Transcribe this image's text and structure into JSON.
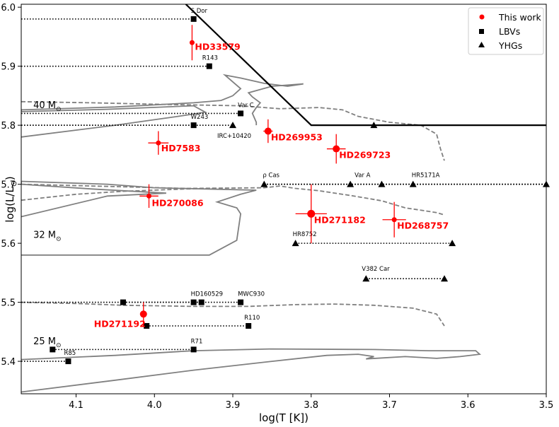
{
  "chart_data": {
    "type": "scatter",
    "xlabel": "log(T [K])",
    "ylabel_main": "log(L/L",
    "ylabel_suffix": ")",
    "xlim": [
      4.17,
      3.5
    ],
    "ylim": [
      5.345,
      6.005
    ],
    "x_ticks": [
      4.1,
      4.0,
      3.9,
      3.8,
      3.7,
      3.6,
      3.5
    ],
    "x_tick_labels": [
      "4.1",
      "4.0",
      "3.9",
      "3.8",
      "3.7",
      "3.6",
      "3.5"
    ],
    "y_ticks": [
      5.4,
      5.5,
      5.6,
      5.7,
      5.8,
      5.9,
      6.0
    ],
    "y_tick_labels": [
      "5.4",
      "5.5",
      "5.6",
      "5.7",
      "5.8",
      "5.9",
      "6.0"
    ],
    "legend": {
      "position": "top-right",
      "entries": [
        {
          "label": "This work",
          "marker": "circle",
          "color": "#ff0000"
        },
        {
          "label": "LBVs",
          "marker": "square",
          "color": "#000000"
        },
        {
          "label": "YHGs",
          "marker": "triangle",
          "color": "#000000"
        }
      ]
    },
    "mass_labels": [
      {
        "text": "40 M",
        "sub": "⊙",
        "x": 4.16,
        "y": 5.835
      },
      {
        "text": "32 M",
        "sub": "⊙",
        "x": 4.16,
        "y": 5.615
      },
      {
        "text": "25 M",
        "sub": "⊙",
        "x": 4.16,
        "y": 5.435
      }
    ],
    "this_work": [
      {
        "name": "HD33579",
        "x": 3.952,
        "y": 5.94,
        "xerr": 0.003,
        "yerr": 0.03,
        "size": 3.5,
        "label_dx": 4,
        "label_dy": 10
      },
      {
        "name": "HD7583",
        "x": 3.995,
        "y": 5.77,
        "xerr": 0.013,
        "yerr": 0.02,
        "size": 3.5,
        "label_dx": 4,
        "label_dy": 12
      },
      {
        "name": "HD269953",
        "x": 3.855,
        "y": 5.79,
        "xerr": 0.006,
        "yerr": 0.02,
        "size": 5,
        "label_dx": 4,
        "label_dy": 13
      },
      {
        "name": "HD269723",
        "x": 3.768,
        "y": 5.76,
        "xerr": 0.012,
        "yerr": 0.025,
        "size": 5,
        "label_dx": 4,
        "label_dy": 13
      },
      {
        "name": "HD270086",
        "x": 4.007,
        "y": 5.68,
        "xerr": 0.012,
        "yerr": 0.02,
        "size": 3.5,
        "label_dx": 4,
        "label_dy": 14
      },
      {
        "name": "HD271182",
        "x": 3.8,
        "y": 5.65,
        "xerr": 0.02,
        "yerr": 0.05,
        "size": 5.5,
        "label_dx": 4,
        "label_dy": 13
      },
      {
        "name": "HD268757",
        "x": 3.694,
        "y": 5.64,
        "xerr": 0.015,
        "yerr": 0.03,
        "size": 3.5,
        "label_dx": 4,
        "label_dy": 13
      },
      {
        "name": "HD271192",
        "x": 4.014,
        "y": 5.48,
        "xerr": 0.003,
        "yerr": 0.02,
        "size": 5,
        "label_dx": -70,
        "label_dy": 18
      }
    ],
    "lbvs": [
      {
        "name": "S Dor",
        "x_min": 4.17,
        "x_max": 3.95,
        "y": 5.98,
        "points": [
          3.95
        ],
        "label_x": 3.95,
        "label_dx": -4
      },
      {
        "name": "R143",
        "x_min": 4.17,
        "x_max": 3.93,
        "y": 5.9,
        "points": [
          3.93
        ],
        "label_x": 3.93,
        "label_dx": -10
      },
      {
        "name": "Var C",
        "x_min": 4.17,
        "x_max": 3.89,
        "y": 5.82,
        "points": [
          3.89
        ],
        "label_x": 3.89,
        "label_dx": -4
      },
      {
        "name": "W243",
        "x_min": 4.17,
        "x_max": 3.95,
        "y": 5.8,
        "points": [
          3.95
        ],
        "label_x": 3.95,
        "label_dx": -4
      },
      {
        "name": "HD160529",
        "x_min": 4.17,
        "x_max": 3.94,
        "y": 5.5,
        "points": [
          4.04,
          3.95,
          3.94
        ],
        "label_x": 3.95,
        "label_dx": -4
      },
      {
        "name": "MWC930",
        "x_min": 4.04,
        "x_max": 3.89,
        "y": 5.5,
        "points": [
          3.89
        ],
        "label_x": 3.89,
        "label_dx": -4
      },
      {
        "name": "R110",
        "x_min": 4.01,
        "x_max": 3.88,
        "y": 5.46,
        "points": [
          4.01,
          3.88
        ],
        "label_x": 3.88,
        "label_dx": -6
      },
      {
        "name": "R71",
        "x_min": 4.13,
        "x_max": 3.95,
        "y": 5.42,
        "points": [
          4.13,
          3.95
        ],
        "label_x": 3.95,
        "label_dx": -4
      },
      {
        "name": "R85",
        "x_min": 4.17,
        "x_max": 4.11,
        "y": 5.4,
        "points": [
          4.11
        ],
        "label_x": 4.11,
        "label_dx": -6
      }
    ],
    "yhgs": [
      {
        "name": "IRC+10420",
        "x_min": 4.17,
        "x_max": 3.9,
        "y": 5.8,
        "points": [
          3.9
        ],
        "label_x": 3.9,
        "label_dx": -22,
        "label_dy": 18
      },
      {
        "name": "ρ Cas",
        "x_min": 3.86,
        "x_max": 3.5,
        "y": 5.7,
        "points": [
          3.86
        ],
        "label_x": 3.86,
        "label_dx": -2,
        "label_dy": -10
      },
      {
        "name": "Var A",
        "x_min": 3.86,
        "x_max": 3.5,
        "y": 5.7,
        "points": [
          3.75
        ],
        "label_x": 3.75,
        "label_dx": 6,
        "label_dy": -10
      },
      {
        "name": "HR5171A",
        "x_min": 3.86,
        "x_max": 3.5,
        "y": 5.7,
        "points": [
          3.71,
          3.67,
          3.5
        ],
        "label_x": 3.67,
        "label_dx": -2,
        "label_dy": -10
      },
      {
        "name": "HR8752",
        "x_min": 3.82,
        "x_max": 3.62,
        "y": 5.6,
        "points": [
          3.82,
          3.62
        ],
        "label_x": 3.82,
        "label_dx": -4,
        "label_dy": -10
      },
      {
        "name": "V382 Car",
        "x_min": 3.73,
        "x_max": 3.63,
        "y": 5.54,
        "points": [
          3.73,
          3.63
        ],
        "label_x": 3.73,
        "label_dx": -6,
        "label_dy": -11
      },
      {
        "name": "",
        "x_min": 3.72,
        "x_max": 3.72,
        "y": 5.8,
        "points": [
          3.72
        ],
        "label_x": 3.72,
        "label_dx": 0,
        "label_dy": 0
      }
    ],
    "hd_limit": [
      [
        3.96,
        6.005
      ],
      [
        3.8,
        5.8
      ],
      [
        3.5,
        5.8
      ]
    ],
    "tracks": [
      {
        "style": "solid",
        "points": [
          [
            4.17,
            5.78
          ],
          [
            4.05,
            5.8
          ],
          [
            3.97,
            5.815
          ],
          [
            3.935,
            5.822
          ],
          [
            3.95,
            5.833
          ],
          [
            4.06,
            5.827
          ],
          [
            4.17,
            5.823
          ],
          [
            4.17,
            5.826
          ],
          [
            4.05,
            5.831
          ],
          [
            3.95,
            5.838
          ],
          [
            3.915,
            5.842
          ],
          [
            3.9,
            5.85
          ],
          [
            3.89,
            5.862
          ],
          [
            3.91,
            5.885
          ],
          [
            3.89,
            5.88
          ],
          [
            3.86,
            5.871
          ],
          [
            3.83,
            5.866
          ],
          [
            3.81,
            5.87
          ],
          [
            3.85,
            5.866
          ],
          [
            3.88,
            5.855
          ],
          [
            3.875,
            5.848
          ],
          [
            3.865,
            5.838
          ],
          [
            3.87,
            5.83
          ],
          [
            3.875,
            5.82
          ],
          [
            3.87,
            5.805
          ],
          [
            3.87,
            5.8
          ]
        ]
      },
      {
        "style": "dashed",
        "points": [
          [
            4.17,
            5.84
          ],
          [
            4.08,
            5.838
          ],
          [
            3.98,
            5.835
          ],
          [
            3.89,
            5.833
          ],
          [
            3.84,
            5.828
          ],
          [
            3.79,
            5.83
          ],
          [
            3.76,
            5.826
          ],
          [
            3.74,
            5.815
          ],
          [
            3.7,
            5.805
          ],
          [
            3.66,
            5.8
          ],
          [
            3.64,
            5.785
          ],
          [
            3.635,
            5.76
          ],
          [
            3.63,
            5.74
          ]
        ]
      },
      {
        "style": "solid",
        "points": [
          [
            4.17,
            5.58
          ],
          [
            4.07,
            5.58
          ],
          [
            3.93,
            5.58
          ],
          [
            3.895,
            5.605
          ],
          [
            3.89,
            5.65
          ],
          [
            3.895,
            5.66
          ],
          [
            3.92,
            5.67
          ],
          [
            3.89,
            5.683
          ],
          [
            3.87,
            5.69
          ],
          [
            4.0,
            5.694
          ],
          [
            4.06,
            5.7
          ],
          [
            4.17,
            5.705
          ],
          [
            4.17,
            5.7
          ],
          [
            4.08,
            5.692
          ],
          [
            3.985,
            5.685
          ],
          [
            4.06,
            5.68
          ],
          [
            4.17,
            5.645
          ]
        ]
      },
      {
        "style": "dashed",
        "points": [
          [
            4.17,
            5.7
          ],
          [
            4.08,
            5.697
          ],
          [
            3.96,
            5.693
          ],
          [
            3.86,
            5.694
          ],
          [
            3.84,
            5.697
          ],
          [
            3.82,
            5.693
          ],
          [
            3.79,
            5.689
          ],
          [
            3.75,
            5.681
          ],
          [
            3.71,
            5.672
          ],
          [
            3.68,
            5.66
          ],
          [
            3.64,
            5.652
          ],
          [
            3.63,
            5.648
          ]
        ]
      },
      {
        "style": "dashed",
        "points": [
          [
            4.17,
            5.673
          ],
          [
            4.1,
            5.683
          ],
          [
            4.04,
            5.688
          ],
          [
            3.96,
            5.692
          ],
          [
            3.92,
            5.693
          ]
        ]
      },
      {
        "style": "solid",
        "points": [
          [
            4.17,
            5.348
          ],
          [
            4.05,
            5.368
          ],
          [
            3.95,
            5.385
          ],
          [
            3.85,
            5.4
          ],
          [
            3.78,
            5.41
          ],
          [
            3.74,
            5.412
          ],
          [
            3.72,
            5.408
          ],
          [
            3.73,
            5.404
          ],
          [
            3.68,
            5.408
          ],
          [
            3.64,
            5.405
          ],
          [
            3.61,
            5.408
          ],
          [
            3.585,
            5.412
          ],
          [
            3.59,
            5.418
          ],
          [
            3.65,
            5.418
          ],
          [
            3.72,
            5.42
          ],
          [
            3.85,
            5.421
          ],
          [
            3.95,
            5.418
          ],
          [
            4.05,
            5.41
          ],
          [
            4.17,
            5.403
          ]
        ]
      },
      {
        "style": "dashed",
        "points": [
          [
            4.17,
            5.5
          ],
          [
            4.1,
            5.498
          ],
          [
            4.04,
            5.495
          ],
          [
            3.95,
            5.493
          ],
          [
            3.88,
            5.493
          ],
          [
            3.82,
            5.496
          ],
          [
            3.77,
            5.497
          ],
          [
            3.72,
            5.495
          ],
          [
            3.67,
            5.49
          ],
          [
            3.64,
            5.48
          ],
          [
            3.63,
            5.46
          ]
        ]
      }
    ]
  }
}
